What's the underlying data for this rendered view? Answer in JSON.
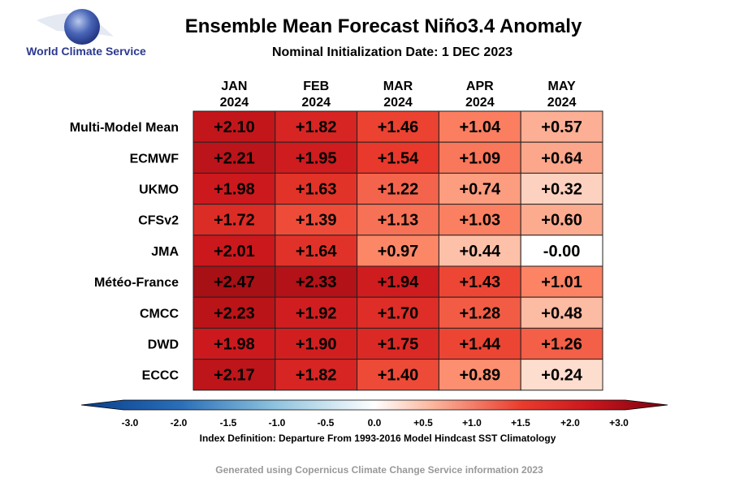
{
  "logo": {
    "text": "World Climate Service",
    "icon": "globe-icon"
  },
  "chart_data": {
    "type": "heatmap",
    "title": "Ensemble Mean Forecast Niño3.4 Anomaly",
    "subtitle": "Nominal Initialization Date: 1 DEC 2023",
    "columns": [
      {
        "month": "JAN",
        "year": "2024"
      },
      {
        "month": "FEB",
        "year": "2024"
      },
      {
        "month": "MAR",
        "year": "2024"
      },
      {
        "month": "APR",
        "year": "2024"
      },
      {
        "month": "MAY",
        "year": "2024"
      }
    ],
    "rows": [
      "Multi-Model Mean",
      "ECMWF",
      "UKMO",
      "CFSv2",
      "JMA",
      "Météo-France",
      "CMCC",
      "DWD",
      "ECCC"
    ],
    "values": [
      [
        2.1,
        1.82,
        1.46,
        1.04,
        0.57
      ],
      [
        2.21,
        1.95,
        1.54,
        1.09,
        0.64
      ],
      [
        1.98,
        1.63,
        1.22,
        0.74,
        0.32
      ],
      [
        1.72,
        1.39,
        1.13,
        1.03,
        0.6
      ],
      [
        2.01,
        1.64,
        0.97,
        0.44,
        -0.0
      ],
      [
        2.47,
        2.33,
        1.94,
        1.43,
        1.01
      ],
      [
        2.23,
        1.92,
        1.7,
        1.28,
        0.48
      ],
      [
        1.98,
        1.9,
        1.75,
        1.44,
        1.26
      ],
      [
        2.17,
        1.82,
        1.4,
        0.89,
        0.24
      ]
    ],
    "labels": [
      [
        "+2.10",
        "+1.82",
        "+1.46",
        "+1.04",
        "+0.57"
      ],
      [
        "+2.21",
        "+1.95",
        "+1.54",
        "+1.09",
        "+0.64"
      ],
      [
        "+1.98",
        "+1.63",
        "+1.22",
        "+0.74",
        "+0.32"
      ],
      [
        "+1.72",
        "+1.39",
        "+1.13",
        "+1.03",
        "+0.60"
      ],
      [
        "+2.01",
        "+1.64",
        "+0.97",
        "+0.44",
        "-0.00"
      ],
      [
        "+2.47",
        "+2.33",
        "+1.94",
        "+1.43",
        "+1.01"
      ],
      [
        "+2.23",
        "+1.92",
        "+1.70",
        "+1.28",
        "+0.48"
      ],
      [
        "+1.98",
        "+1.90",
        "+1.75",
        "+1.44",
        "+1.26"
      ],
      [
        "+2.17",
        "+1.82",
        "+1.40",
        "+0.89",
        "+0.24"
      ]
    ],
    "colorbar": {
      "range": [
        -3.0,
        3.0
      ],
      "extend": "both",
      "colormap": "diverging blue-white-red",
      "ticks": [
        -3.0,
        -2.0,
        -1.5,
        -1.0,
        -0.5,
        0.0,
        0.5,
        1.0,
        1.5,
        2.0,
        3.0
      ],
      "tick_labels": [
        "-3.0",
        "-2.0",
        "-1.5",
        "-1.0",
        "-0.5",
        "0.0",
        "+0.5",
        "+1.0",
        "+1.5",
        "+2.0",
        "+3.0"
      ],
      "label": "Index Definition: Departure From 1993-2016 Model Hindcast SST Climatology"
    }
  },
  "footer": "Generated using Copernicus Climate Change Service information 2023",
  "colors": {
    "logo_text": "#2b3990",
    "footer_text": "#999999",
    "cell_border": "#222222"
  }
}
